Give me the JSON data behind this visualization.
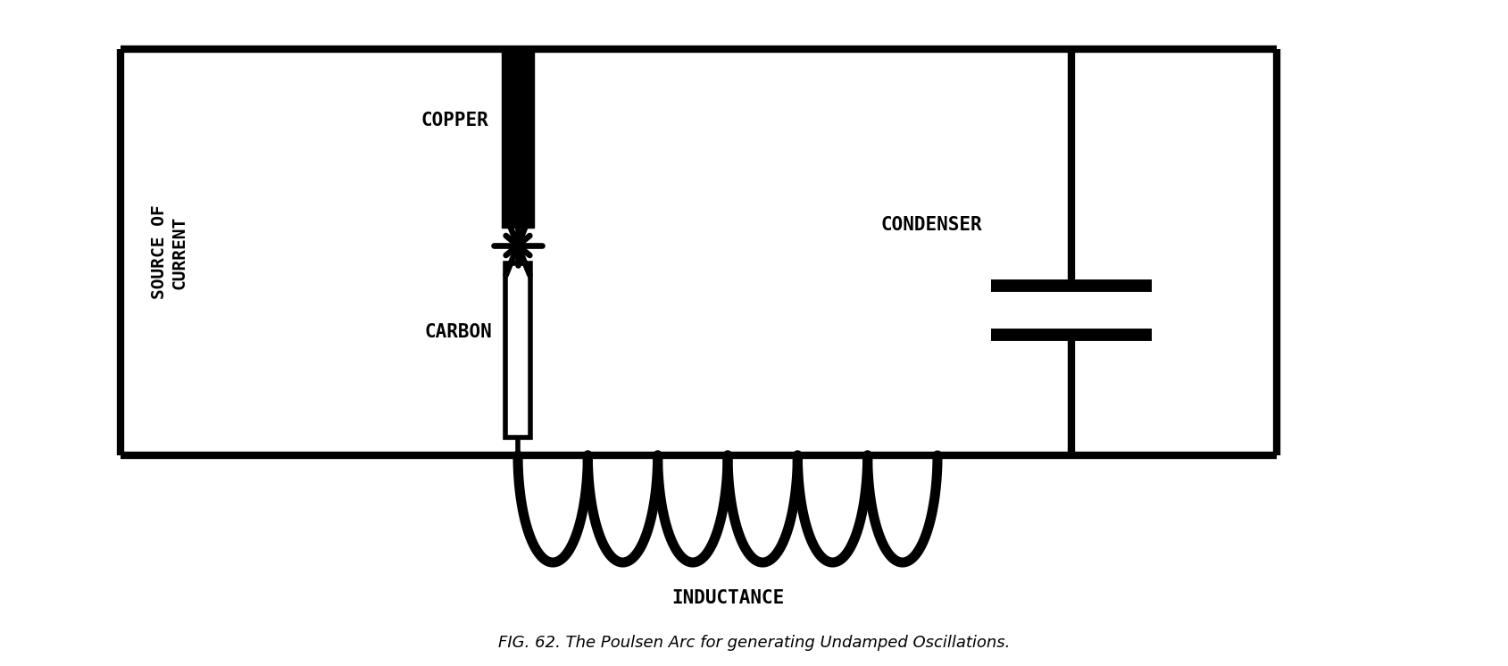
{
  "background_color": "#ffffff",
  "line_color": "#000000",
  "line_width": 4.0,
  "title": "FIG. 62. The Poulsen Arc for generating Undamped Oscillations.",
  "title_fontsize": 13,
  "title_color": "#000000",
  "labels": {
    "source": "SOURCE OF\nCURRENT",
    "copper": "COPPER",
    "carbon": "CARBON",
    "condenser": "CONDENSER",
    "inductance": "INDUCTANCE"
  },
  "label_fontsize": 15
}
